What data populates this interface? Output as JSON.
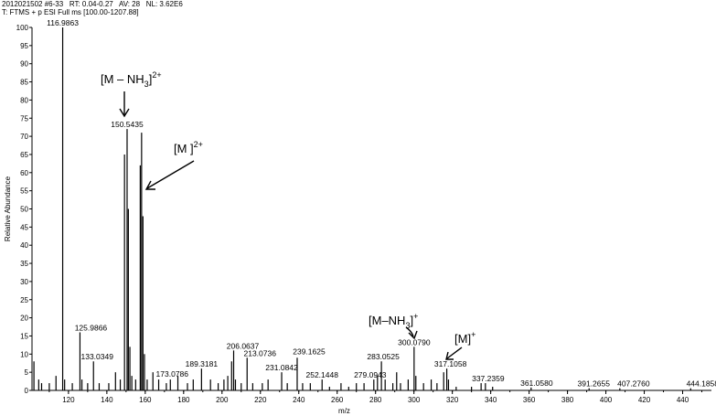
{
  "header": {
    "line1": "2012021502 #6-33   RT: 0.04-0.27   AV: 28   NL: 3.62E6",
    "line2": "T: FTMS + p ESI Full ms [100.00-1207.88]"
  },
  "chart_data": {
    "type": "bar",
    "title": "",
    "xlabel": "m/z",
    "ylabel": "Relative Abundance",
    "xlim": [
      101,
      455
    ],
    "ylim": [
      0,
      100
    ],
    "x_ticks": [
      120,
      140,
      160,
      180,
      200,
      220,
      240,
      260,
      280,
      300,
      320,
      340,
      360,
      380,
      400,
      420,
      440
    ],
    "y_ticks": [
      0,
      5,
      10,
      15,
      20,
      25,
      30,
      35,
      40,
      45,
      50,
      55,
      60,
      65,
      70,
      75,
      80,
      85,
      90,
      95,
      100
    ],
    "peaks": [
      {
        "mz": 102.0,
        "intensity": 8
      },
      {
        "mz": 104.5,
        "intensity": 3
      },
      {
        "mz": 106.0,
        "intensity": 2
      },
      {
        "mz": 110.0,
        "intensity": 2
      },
      {
        "mz": 113.5,
        "intensity": 4
      },
      {
        "mz": 116.9863,
        "intensity": 100
      },
      {
        "mz": 118.0,
        "intensity": 3
      },
      {
        "mz": 122.0,
        "intensity": 2
      },
      {
        "mz": 125.9866,
        "intensity": 16
      },
      {
        "mz": 127.0,
        "intensity": 3
      },
      {
        "mz": 130.0,
        "intensity": 2
      },
      {
        "mz": 133.0349,
        "intensity": 8
      },
      {
        "mz": 136.0,
        "intensity": 2
      },
      {
        "mz": 141.0,
        "intensity": 2
      },
      {
        "mz": 144.5,
        "intensity": 5
      },
      {
        "mz": 147.0,
        "intensity": 3
      },
      {
        "mz": 149.2,
        "intensity": 65
      },
      {
        "mz": 150.5435,
        "intensity": 72
      },
      {
        "mz": 151.2,
        "intensity": 50
      },
      {
        "mz": 152.0,
        "intensity": 12
      },
      {
        "mz": 153.0,
        "intensity": 4
      },
      {
        "mz": 155.0,
        "intensity": 3
      },
      {
        "mz": 157.4,
        "intensity": 62
      },
      {
        "mz": 158.1,
        "intensity": 71
      },
      {
        "mz": 158.8,
        "intensity": 48
      },
      {
        "mz": 159.6,
        "intensity": 10
      },
      {
        "mz": 161.0,
        "intensity": 3
      },
      {
        "mz": 164.0,
        "intensity": 5
      },
      {
        "mz": 167.0,
        "intensity": 3
      },
      {
        "mz": 171.0,
        "intensity": 2
      },
      {
        "mz": 173.0786,
        "intensity": 3
      },
      {
        "mz": 177.0,
        "intensity": 4
      },
      {
        "mz": 182.0,
        "intensity": 2
      },
      {
        "mz": 185.0,
        "intensity": 3
      },
      {
        "mz": 189.3181,
        "intensity": 6
      },
      {
        "mz": 194.0,
        "intensity": 3
      },
      {
        "mz": 198.0,
        "intensity": 2
      },
      {
        "mz": 201.0,
        "intensity": 3
      },
      {
        "mz": 203.0,
        "intensity": 4
      },
      {
        "mz": 205.0,
        "intensity": 8
      },
      {
        "mz": 206.0637,
        "intensity": 11
      },
      {
        "mz": 207.0,
        "intensity": 3
      },
      {
        "mz": 210.0,
        "intensity": 2
      },
      {
        "mz": 213.0736,
        "intensity": 9
      },
      {
        "mz": 216.0,
        "intensity": 2
      },
      {
        "mz": 221.0,
        "intensity": 2
      },
      {
        "mz": 224.0,
        "intensity": 3
      },
      {
        "mz": 231.0842,
        "intensity": 5
      },
      {
        "mz": 234.0,
        "intensity": 2
      },
      {
        "mz": 239.1625,
        "intensity": 9
      },
      {
        "mz": 242.0,
        "intensity": 2
      },
      {
        "mz": 246.0,
        "intensity": 2
      },
      {
        "mz": 252.1448,
        "intensity": 3
      },
      {
        "mz": 256.0,
        "intensity": 1
      },
      {
        "mz": 262.0,
        "intensity": 2
      },
      {
        "mz": 266.0,
        "intensity": 1
      },
      {
        "mz": 270.0,
        "intensity": 2
      },
      {
        "mz": 274.0,
        "intensity": 2
      },
      {
        "mz": 279.0943,
        "intensity": 3
      },
      {
        "mz": 281.0,
        "intensity": 4
      },
      {
        "mz": 283.0525,
        "intensity": 8
      },
      {
        "mz": 285.0,
        "intensity": 3
      },
      {
        "mz": 289.0,
        "intensity": 2
      },
      {
        "mz": 291.0,
        "intensity": 5
      },
      {
        "mz": 293.0,
        "intensity": 2
      },
      {
        "mz": 297.0,
        "intensity": 3
      },
      {
        "mz": 300.079,
        "intensity": 12
      },
      {
        "mz": 301.0,
        "intensity": 4
      },
      {
        "mz": 305.0,
        "intensity": 2
      },
      {
        "mz": 309.0,
        "intensity": 3
      },
      {
        "mz": 312.0,
        "intensity": 2
      },
      {
        "mz": 315.5,
        "intensity": 5
      },
      {
        "mz": 317.1058,
        "intensity": 6
      },
      {
        "mz": 318.0,
        "intensity": 3
      },
      {
        "mz": 322.0,
        "intensity": 1
      },
      {
        "mz": 330.0,
        "intensity": 1
      },
      {
        "mz": 335.0,
        "intensity": 2
      },
      {
        "mz": 337.2359,
        "intensity": 2
      },
      {
        "mz": 341.0,
        "intensity": 1
      },
      {
        "mz": 361.058,
        "intensity": 0.8
      },
      {
        "mz": 391.2655,
        "intensity": 0.6
      },
      {
        "mz": 407.276,
        "intensity": 0.6
      },
      {
        "mz": 444.1858,
        "intensity": 0.6
      }
    ],
    "peak_labels": [
      {
        "mz": 116.9863,
        "intensity": 100,
        "text": "116.9863",
        "dx": 0,
        "dy": 0
      },
      {
        "mz": 150.5435,
        "intensity": 72,
        "text": "150.5435",
        "dx": 0,
        "dy": 0
      },
      {
        "mz": 125.9866,
        "intensity": 16,
        "text": "125.9866",
        "dx": 12,
        "dy": 0
      },
      {
        "mz": 133.0349,
        "intensity": 8,
        "text": "133.0349",
        "dx": 4,
        "dy": 0
      },
      {
        "mz": 173.0786,
        "intensity": 3,
        "text": "173.0786",
        "dx": 2,
        "dy": -1
      },
      {
        "mz": 189.3181,
        "intensity": 6,
        "text": "189.3181",
        "dx": 0,
        "dy": 0
      },
      {
        "mz": 206.0637,
        "intensity": 11,
        "text": "206.0637",
        "dx": 10,
        "dy": 0
      },
      {
        "mz": 213.0736,
        "intensity": 9,
        "text": "213.0736",
        "dx": 14,
        "dy": 0
      },
      {
        "mz": 231.0842,
        "intensity": 5,
        "text": "231.0842",
        "dx": 0,
        "dy": 0
      },
      {
        "mz": 239.1625,
        "intensity": 9,
        "text": "239.1625",
        "dx": 13,
        "dy": -2
      },
      {
        "mz": 252.1448,
        "intensity": 3,
        "text": "252.1448",
        "dx": 0,
        "dy": 0
      },
      {
        "mz": 279.0943,
        "intensity": 3,
        "text": "279.0943",
        "dx": -4,
        "dy": 0
      },
      {
        "mz": 283.0525,
        "intensity": 8,
        "text": "283.0525",
        "dx": 2,
        "dy": 0
      },
      {
        "mz": 300.079,
        "intensity": 12,
        "text": "300.0790",
        "dx": 0,
        "dy": 0
      },
      {
        "mz": 317.1058,
        "intensity": 6,
        "text": "317.1058",
        "dx": 4,
        "dy": 0
      },
      {
        "mz": 337.2359,
        "intensity": 2,
        "text": "337.2359",
        "dx": 3,
        "dy": 0
      },
      {
        "mz": 361.058,
        "intensity": 0.8,
        "text": "361.0580",
        "dx": 6,
        "dy": 0
      },
      {
        "mz": 391.2655,
        "intensity": 0.6,
        "text": "391.2655",
        "dx": 5,
        "dy": 0
      },
      {
        "mz": 407.276,
        "intensity": 0.6,
        "text": "407.2760",
        "dx": 15,
        "dy": 0
      },
      {
        "mz": 444.1858,
        "intensity": 0.6,
        "text": "444.1858",
        "dx": 13,
        "dy": 0
      }
    ],
    "annotations": [
      {
        "main": "[M – NH",
        "sub": "3",
        "close": "]",
        "sup": "2+",
        "target_mz": 150.5435
      },
      {
        "main": "[M ]",
        "sup": "2+",
        "target_mz": 158.1
      },
      {
        "main": "[M–NH",
        "sub": "3",
        "close": "]",
        "sup": "+",
        "target_mz": 300.079
      },
      {
        "main": "[M]",
        "sup": "+",
        "target_mz": 317.1058
      }
    ]
  }
}
